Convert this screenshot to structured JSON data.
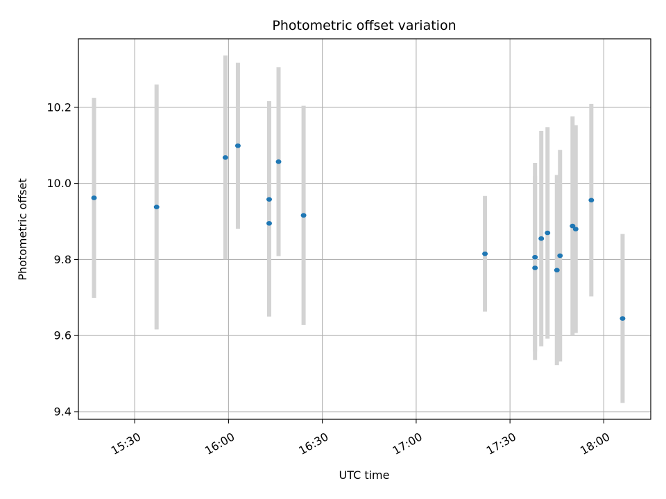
{
  "chart_data": {
    "type": "scatter",
    "title": "Photometric offset variation",
    "xlabel": "UTC time",
    "ylabel": "Photometric offset",
    "x_axis_type": "time",
    "xlim": [
      "15:12",
      "18:15"
    ],
    "ylim": [
      9.38,
      10.38
    ],
    "grid": true,
    "x_ticks": [
      "15:30",
      "16:00",
      "16:30",
      "17:00",
      "17:30",
      "18:00"
    ],
    "y_ticks": [
      9.4,
      9.6,
      9.8,
      10.0,
      10.2
    ],
    "y_tick_labels": [
      "9.4",
      "9.6",
      "9.8",
      "10.0",
      "10.2"
    ],
    "marker_color": "#1f77b4",
    "errorbar_color": "#d3d3d3",
    "points": [
      {
        "t": "15:17",
        "y": 9.962,
        "err": 0.263
      },
      {
        "t": "15:37",
        "y": 9.938,
        "err": 0.322
      },
      {
        "t": "15:59",
        "y": 10.068,
        "err": 0.268
      },
      {
        "t": "16:03",
        "y": 10.099,
        "err": 0.218
      },
      {
        "t": "16:13",
        "y": 9.895,
        "err": 0.245
      },
      {
        "t": "16:13",
        "y": 9.958,
        "err": 0.258
      },
      {
        "t": "16:16",
        "y": 10.057,
        "err": 0.248
      },
      {
        "t": "16:24",
        "y": 9.916,
        "err": 0.288
      },
      {
        "t": "17:22",
        "y": 9.815,
        "err": 0.152
      },
      {
        "t": "17:38",
        "y": 9.806,
        "err": 0.248
      },
      {
        "t": "17:38",
        "y": 9.778,
        "err": 0.242
      },
      {
        "t": "17:40",
        "y": 9.855,
        "err": 0.283
      },
      {
        "t": "17:42",
        "y": 9.87,
        "err": 0.278
      },
      {
        "t": "17:45",
        "y": 9.772,
        "err": 0.25
      },
      {
        "t": "17:46",
        "y": 9.81,
        "err": 0.278
      },
      {
        "t": "17:50",
        "y": 9.888,
        "err": 0.288
      },
      {
        "t": "17:51",
        "y": 9.88,
        "err": 0.273
      },
      {
        "t": "17:56",
        "y": 9.956,
        "err": 0.253
      },
      {
        "t": "18:06",
        "y": 9.645,
        "err": 0.222
      }
    ]
  }
}
